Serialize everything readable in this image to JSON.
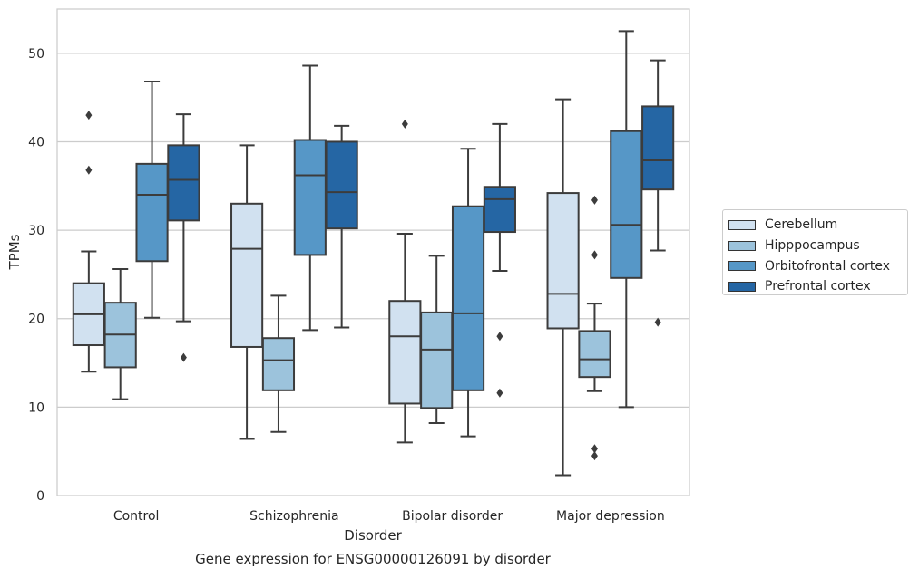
{
  "chart_data": {
    "type": "box",
    "caption": "Gene expression for ENSG00000126091 by disorder",
    "xlabel": "Disorder",
    "ylabel": "TPMs",
    "ylim": [
      0,
      55
    ],
    "yticks": [
      0,
      10,
      20,
      30,
      40,
      50
    ],
    "grid": "horizontal",
    "legend_position": "right",
    "categories": [
      "Control",
      "Schizophrenia",
      "Bipolar disorder",
      "Major depression"
    ],
    "series": [
      {
        "name": "Cerebellum",
        "color": "#d1e1f0",
        "boxes": [
          {
            "whisker_low": 14.0,
            "q1": 17.0,
            "median": 20.5,
            "q3": 24.0,
            "whisker_high": 27.6,
            "outliers": [
              36.8,
              43.0
            ]
          },
          {
            "whisker_low": 6.4,
            "q1": 16.8,
            "median": 27.9,
            "q3": 33.0,
            "whisker_high": 39.6,
            "outliers": []
          },
          {
            "whisker_low": 6.0,
            "q1": 10.4,
            "median": 18.0,
            "q3": 22.0,
            "whisker_high": 29.6,
            "outliers": [
              42.0
            ]
          },
          {
            "whisker_low": 2.3,
            "q1": 18.9,
            "median": 22.8,
            "q3": 34.2,
            "whisker_high": 44.8,
            "outliers": []
          }
        ]
      },
      {
        "name": "Hipppocampus",
        "color": "#9cc3dc",
        "boxes": [
          {
            "whisker_low": 10.9,
            "q1": 14.5,
            "median": 18.2,
            "q3": 21.8,
            "whisker_high": 25.6,
            "outliers": []
          },
          {
            "whisker_low": 7.2,
            "q1": 11.9,
            "median": 15.3,
            "q3": 17.8,
            "whisker_high": 22.6,
            "outliers": []
          },
          {
            "whisker_low": 8.2,
            "q1": 9.9,
            "median": 16.5,
            "q3": 20.7,
            "whisker_high": 27.1,
            "outliers": []
          },
          {
            "whisker_low": 11.8,
            "q1": 13.4,
            "median": 15.4,
            "q3": 18.6,
            "whisker_high": 21.7,
            "outliers": [
              4.5,
              5.3,
              27.2,
              33.4
            ]
          }
        ]
      },
      {
        "name": "Orbitofrontal cortex",
        "color": "#5697c7",
        "boxes": [
          {
            "whisker_low": 20.1,
            "q1": 26.5,
            "median": 34.0,
            "q3": 37.5,
            "whisker_high": 46.8,
            "outliers": []
          },
          {
            "whisker_low": 18.7,
            "q1": 27.2,
            "median": 36.2,
            "q3": 40.2,
            "whisker_high": 48.6,
            "outliers": []
          },
          {
            "whisker_low": 6.7,
            "q1": 11.9,
            "median": 20.6,
            "q3": 32.7,
            "whisker_high": 39.2,
            "outliers": []
          },
          {
            "whisker_low": 10.0,
            "q1": 24.6,
            "median": 30.6,
            "q3": 41.2,
            "whisker_high": 52.5,
            "outliers": []
          }
        ]
      },
      {
        "name": "Prefrontal cortex",
        "color": "#2566a4",
        "boxes": [
          {
            "whisker_low": 19.7,
            "q1": 31.1,
            "median": 35.7,
            "q3": 39.6,
            "whisker_high": 43.1,
            "outliers": [
              15.6
            ]
          },
          {
            "whisker_low": 19.0,
            "q1": 30.2,
            "median": 34.3,
            "q3": 40.0,
            "whisker_high": 41.8,
            "outliers": []
          },
          {
            "whisker_low": 25.4,
            "q1": 29.8,
            "median": 33.5,
            "q3": 34.9,
            "whisker_high": 42.0,
            "outliers": [
              11.6,
              18.0
            ]
          },
          {
            "whisker_low": 27.7,
            "q1": 34.6,
            "median": 37.9,
            "q3": 44.0,
            "whisker_high": 49.2,
            "outliers": [
              19.6
            ]
          }
        ]
      }
    ]
  }
}
